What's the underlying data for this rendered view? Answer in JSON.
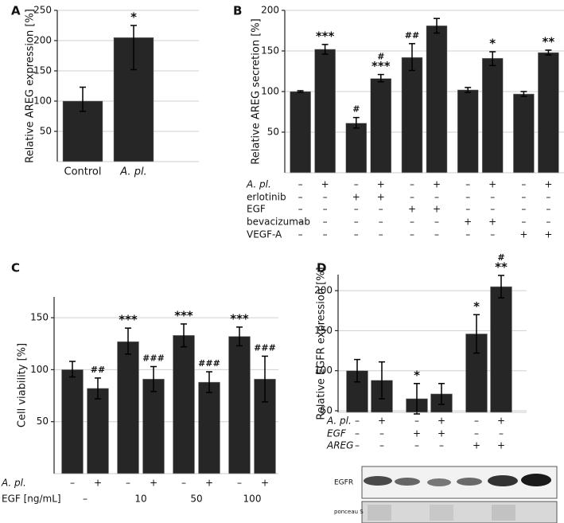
{
  "chart_data": [
    {
      "type": "bar",
      "panel": "A",
      "ylabel": "Relative AREG expression [%]",
      "categories": [
        "Control",
        "A. pl."
      ],
      "values": [
        100,
        205
      ],
      "error_range": [
        [
          83,
          123
        ],
        [
          152,
          225
        ]
      ],
      "annotations": [
        null,
        "*"
      ],
      "color": "#262626",
      "ylim": [
        0,
        250
      ],
      "yticks": [
        50,
        100,
        150,
        200,
        250
      ],
      "grid": true
    },
    {
      "type": "bar",
      "panel": "B",
      "ylabel": "Relative AREG secretion [%]",
      "values": [
        100,
        152,
        61,
        116,
        142,
        181,
        102,
        141,
        97,
        148
      ],
      "error_range": [
        [
          99,
          101
        ],
        [
          146,
          158
        ],
        [
          55,
          68
        ],
        [
          112,
          121
        ],
        [
          126,
          159
        ],
        [
          172,
          190
        ],
        [
          99,
          105
        ],
        [
          132,
          149
        ],
        [
          94,
          100
        ],
        [
          145,
          151
        ]
      ],
      "annotations": [
        null,
        "***",
        "#",
        [
          "#",
          "***"
        ],
        "##",
        null,
        null,
        "*",
        null,
        "**"
      ],
      "rows": [
        {
          "label": "A. pl.",
          "signs": [
            "–",
            "+",
            "–",
            "+",
            "–",
            "+",
            "–",
            "+",
            "–",
            "+"
          ]
        },
        {
          "label": "erlotinib",
          "signs": [
            "–",
            "–",
            "+",
            "+",
            "–",
            "–",
            "–",
            "–",
            "–",
            "–"
          ]
        },
        {
          "label": "EGF",
          "signs": [
            "–",
            "–",
            "–",
            "–",
            "+",
            "+",
            "–",
            "–",
            "–",
            "–"
          ]
        },
        {
          "label": "bevacizumab",
          "signs": [
            "–",
            "–",
            "–",
            "–",
            "–",
            "–",
            "+",
            "+",
            "–",
            "–"
          ]
        },
        {
          "label": "VEGF-A",
          "signs": [
            "–",
            "–",
            "–",
            "–",
            "–",
            "–",
            "–",
            "–",
            "+",
            "+"
          ]
        }
      ],
      "color": "#262626",
      "ylim": [
        0,
        200
      ],
      "yticks": [
        50,
        100,
        150,
        200
      ],
      "grid": true
    },
    {
      "type": "bar",
      "panel": "C",
      "ylabel": "Cell viability [%]",
      "values": [
        100,
        82,
        127,
        91,
        133,
        88,
        132,
        91
      ],
      "error_range": [
        [
          93,
          108
        ],
        [
          72,
          92
        ],
        [
          115,
          140
        ],
        [
          79,
          103
        ],
        [
          122,
          144
        ],
        [
          78,
          98
        ],
        [
          123,
          141
        ],
        [
          69,
          113
        ]
      ],
      "annotations": [
        null,
        "##",
        "***",
        "###",
        "***",
        "###",
        "***",
        "###"
      ],
      "rows": [
        {
          "label": "A. pl.",
          "signs": [
            "–",
            "+",
            "–",
            "+",
            "–",
            "+",
            "–",
            "+"
          ]
        },
        {
          "label": "EGF [ng/mL]",
          "signs": [
            "–",
            "10",
            "50",
            "100"
          ]
        }
      ],
      "color": "#262626",
      "ylim": [
        0,
        170
      ],
      "yticks": [
        50,
        100,
        150
      ],
      "grid": true
    },
    {
      "type": "bar",
      "panel": "D",
      "ylabel": "Relative EGFR expression [%]",
      "values": [
        100,
        88,
        65,
        71,
        146,
        205
      ],
      "error_range": [
        [
          86,
          114
        ],
        [
          65,
          111
        ],
        [
          46,
          84
        ],
        [
          58,
          84
        ],
        [
          122,
          170
        ],
        [
          191,
          219
        ]
      ],
      "annotations": [
        null,
        null,
        "*",
        null,
        "*",
        [
          "#",
          "**"
        ]
      ],
      "rows": [
        {
          "label": "A. pl.",
          "signs": [
            "–",
            "+",
            "–",
            "+",
            "–",
            "+"
          ]
        },
        {
          "label": "EGF",
          "signs": [
            "–",
            "–",
            "+",
            "+",
            "–",
            "–"
          ]
        },
        {
          "label": "AREG",
          "signs": [
            "–",
            "–",
            "–",
            "–",
            "+",
            "+"
          ]
        }
      ],
      "blot": [
        "EGFR",
        "ponceau S"
      ],
      "color": "#262626",
      "ylim": [
        48,
        220
      ],
      "yticks": [
        50,
        100,
        150,
        200
      ],
      "grid": true
    }
  ]
}
